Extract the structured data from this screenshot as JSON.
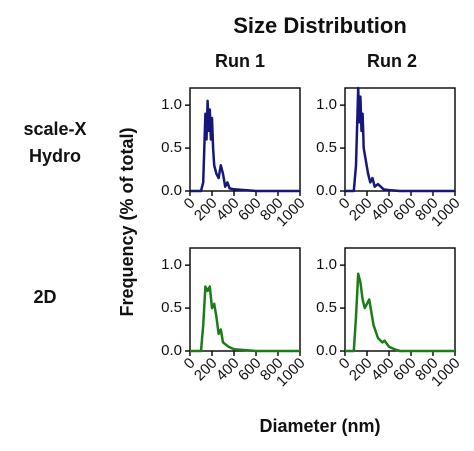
{
  "figure": {
    "title": "Size Distribution",
    "columns": [
      "Run 1",
      "Run 2"
    ],
    "rows": [
      [
        "scale-X",
        "Hydro"
      ],
      [
        "2D"
      ]
    ],
    "ylabel": "Frequency (% of total)",
    "xlabel": "Diameter (nm)"
  },
  "chart_data": [
    {
      "type": "line",
      "color": "#16177a",
      "x": [
        0,
        100,
        120,
        140,
        150,
        160,
        170,
        180,
        190,
        200,
        210,
        220,
        240,
        260,
        280,
        300,
        320,
        340,
        360,
        400,
        500,
        600,
        1000
      ],
      "values": [
        0,
        0,
        0.1,
        0.9,
        0.6,
        1.05,
        0.7,
        0.95,
        0.6,
        0.85,
        0.5,
        0.3,
        0.2,
        0.15,
        0.3,
        0.2,
        0.05,
        0.1,
        0.03,
        0.02,
        0.01,
        0,
        0
      ],
      "xlim": [
        0,
        1000
      ],
      "xticks": [
        0,
        200,
        400,
        600,
        800,
        1000
      ],
      "ylim": [
        0,
        1.2
      ],
      "yticks": [
        {
          "value": 0,
          "label": "0.0"
        },
        {
          "value": 0.5,
          "label": "0.5"
        },
        {
          "value": 1,
          "label": "1.0"
        }
      ]
    },
    {
      "type": "line",
      "color": "#16177a",
      "x": [
        0,
        80,
        100,
        120,
        130,
        140,
        150,
        160,
        170,
        190,
        210,
        230,
        250,
        270,
        300,
        350,
        400,
        500,
        1000
      ],
      "values": [
        0,
        0,
        0.3,
        1.2,
        0.8,
        1.1,
        0.7,
        0.9,
        0.5,
        0.35,
        0.2,
        0.1,
        0.15,
        0.05,
        0.08,
        0.02,
        0.01,
        0,
        0
      ],
      "xlim": [
        0,
        1000
      ],
      "xticks": [
        0,
        200,
        400,
        600,
        800,
        1000
      ],
      "ylim": [
        0,
        1.2
      ],
      "yticks": [
        {
          "value": 0,
          "label": "0.0"
        },
        {
          "value": 0.5,
          "label": "0.5"
        },
        {
          "value": 1,
          "label": "1.0"
        }
      ]
    },
    {
      "type": "line",
      "color": "#1b7d17",
      "x": [
        0,
        100,
        120,
        140,
        160,
        180,
        200,
        220,
        240,
        260,
        280,
        300,
        350,
        400,
        500,
        600,
        1000
      ],
      "values": [
        0,
        0,
        0.3,
        0.75,
        0.7,
        0.75,
        0.5,
        0.55,
        0.4,
        0.2,
        0.25,
        0.1,
        0.05,
        0.02,
        0.01,
        0,
        0
      ],
      "xlim": [
        0,
        1000
      ],
      "xticks": [
        0,
        200,
        400,
        600,
        800,
        1000
      ],
      "ylim": [
        0,
        1.2
      ],
      "yticks": [
        {
          "value": 0,
          "label": "0.0"
        },
        {
          "value": 0.5,
          "label": "0.5"
        },
        {
          "value": 1,
          "label": "1.0"
        }
      ]
    },
    {
      "type": "line",
      "color": "#1b7d17",
      "x": [
        0,
        80,
        100,
        120,
        140,
        160,
        180,
        200,
        220,
        240,
        260,
        300,
        340,
        360,
        400,
        450,
        500,
        1000
      ],
      "values": [
        0,
        0,
        0.4,
        0.9,
        0.8,
        0.6,
        0.5,
        0.55,
        0.6,
        0.45,
        0.3,
        0.15,
        0.1,
        0.12,
        0.05,
        0.02,
        0,
        0
      ],
      "xlim": [
        0,
        1000
      ],
      "xticks": [
        0,
        200,
        400,
        600,
        800,
        1000
      ],
      "ylim": [
        0,
        1.2
      ],
      "yticks": [
        {
          "value": 0,
          "label": "0.0"
        },
        {
          "value": 0.5,
          "label": "0.5"
        },
        {
          "value": 1,
          "label": "1.0"
        }
      ]
    }
  ]
}
